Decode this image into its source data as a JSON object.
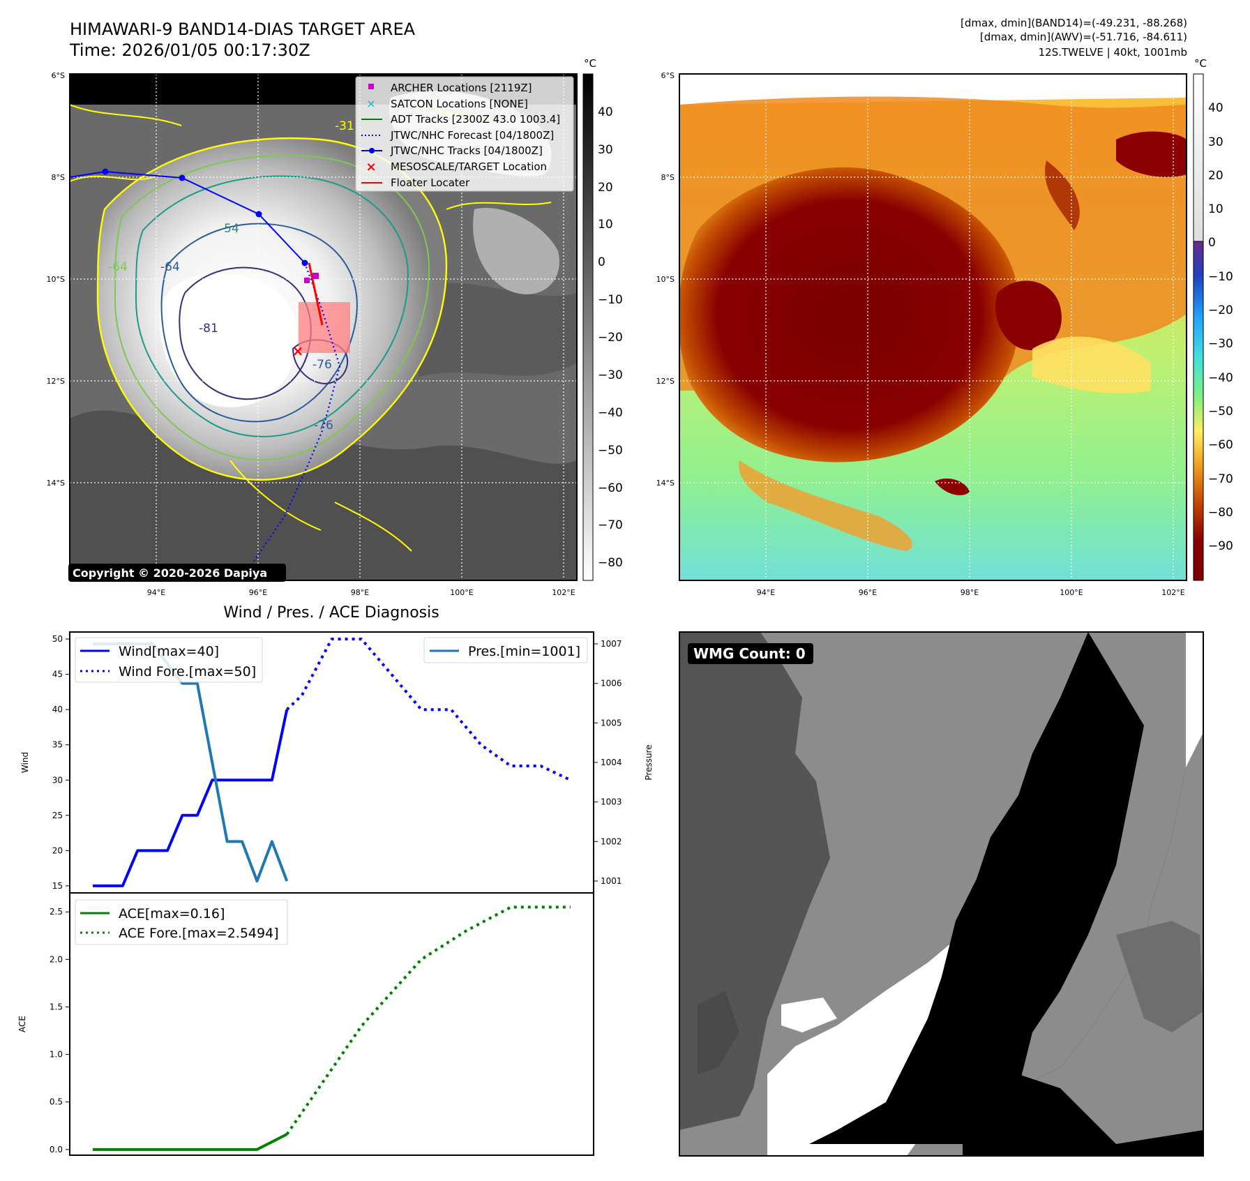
{
  "header": {
    "title": "HIMAWARI-9 BAND14-DIAS TARGET AREA",
    "time": "Time: 2026/01/05 00:17:30Z",
    "stats_band14": "[dmax, dmin](BAND14)=(-49.231, -88.268)",
    "stats_awv": "[dmax, dmin](AWV)=(-51.716, -84.611)",
    "storm": "12S.TWELVE | 40kt, 1001mb"
  },
  "map": {
    "lat_labels": [
      "6°S",
      "8°S",
      "10°S",
      "12°S",
      "14°S"
    ],
    "lon_labels": [
      "94°E",
      "96°E",
      "98°E",
      "100°E",
      "102°E"
    ],
    "copyright": "Copyright © 2020-2026 Dapiya",
    "contour_labels": [
      "-54",
      "-64",
      "-64",
      "-81",
      "-76",
      "-76",
      "-31"
    ],
    "legend": [
      {
        "label": "ARCHER Locations [2119Z]",
        "color": "#cc00cc"
      },
      {
        "label": "SATCON Locations [NONE]",
        "color": "#00bfbf"
      },
      {
        "label": "ADT Tracks [2300Z 43.0 1003.4]",
        "color": "#008000"
      },
      {
        "label": "JTWC/NHC Forecast [04/1800Z]",
        "color": "#0000ff"
      },
      {
        "label": "JTWC/NHC Tracks [04/1800Z]",
        "color": "#0000ff"
      },
      {
        "label": "MESOSCALE/TARGET Location",
        "color": "#ff0000"
      },
      {
        "label": "Floater Locater",
        "color": "#ff0000"
      }
    ]
  },
  "colorbar_gray": {
    "unit": "°C",
    "ticks": [
      "40",
      "30",
      "20",
      "10",
      "0",
      "−10",
      "−20",
      "−30",
      "−40",
      "−50",
      "−60",
      "−70",
      "−80"
    ]
  },
  "colorbar_color": {
    "unit": "°C",
    "ticks": [
      "40",
      "30",
      "20",
      "10",
      "0",
      "−10",
      "−20",
      "−30",
      "−40",
      "−50",
      "−60",
      "−70",
      "−80",
      "−90"
    ]
  },
  "wmg": {
    "label": "WMG Count: 0"
  },
  "chart_data": [
    {
      "type": "line",
      "title": "Wind / Pres. / ACE Diagnosis",
      "ylabel": "Wind",
      "ylabel_right": "Pressure",
      "ylim": [
        14,
        51
      ],
      "ylim_right": [
        1000.7,
        1007.3
      ],
      "yticks": [
        15,
        20,
        25,
        30,
        35,
        40,
        45,
        50
      ],
      "yticks_right": [
        1001,
        1002,
        1003,
        1004,
        1005,
        1006,
        1007
      ],
      "x": [
        0,
        1,
        2,
        3,
        4,
        5,
        6,
        7,
        8,
        9,
        10,
        11,
        12,
        13,
        14,
        15,
        16
      ],
      "series": [
        {
          "name": "Wind[max=40]",
          "color": "#0000ff",
          "style": "solid",
          "axis": "left",
          "x": [
            0,
            1,
            1.5,
            2.5,
            3,
            3.5,
            4,
            5,
            6,
            6.5
          ],
          "values": [
            15,
            15,
            20,
            20,
            25,
            25,
            30,
            30,
            30,
            40
          ]
        },
        {
          "name": "Wind Fore.[max=50]",
          "color": "#0000ff",
          "style": "dotted",
          "axis": "left",
          "x": [
            6.5,
            7,
            8,
            9,
            10,
            11,
            12,
            13,
            14,
            15,
            16
          ],
          "values": [
            40,
            42,
            50,
            50,
            45,
            40,
            40,
            35,
            32,
            32,
            30
          ]
        },
        {
          "name": "Pres.[min=1001]",
          "color": "#1f77b4",
          "style": "solid",
          "axis": "right",
          "x": [
            0,
            2,
            3,
            3.5,
            4.5,
            5,
            5.5,
            6,
            6.5
          ],
          "values": [
            1007,
            1007,
            1006,
            1006,
            1002,
            1002,
            1001,
            1002,
            1001
          ]
        }
      ]
    },
    {
      "type": "line",
      "title": "",
      "ylabel": "ACE",
      "ylim": [
        -0.06,
        2.7
      ],
      "yticks": [
        "0.0",
        "0.5",
        "1.0",
        "1.5",
        "2.0",
        "2.5"
      ],
      "series": [
        {
          "name": "ACE[max=0.16]",
          "color": "#008000",
          "style": "solid",
          "x": [
            0,
            5.5,
            6.5
          ],
          "values": [
            0,
            0,
            0.16
          ]
        },
        {
          "name": "ACE Fore.[max=2.5494]",
          "color": "#008000",
          "style": "dotted",
          "x": [
            6.5,
            9,
            11,
            12.5,
            14,
            16
          ],
          "values": [
            0.16,
            1.3,
            2.0,
            2.3,
            2.55,
            2.55
          ]
        }
      ]
    }
  ]
}
